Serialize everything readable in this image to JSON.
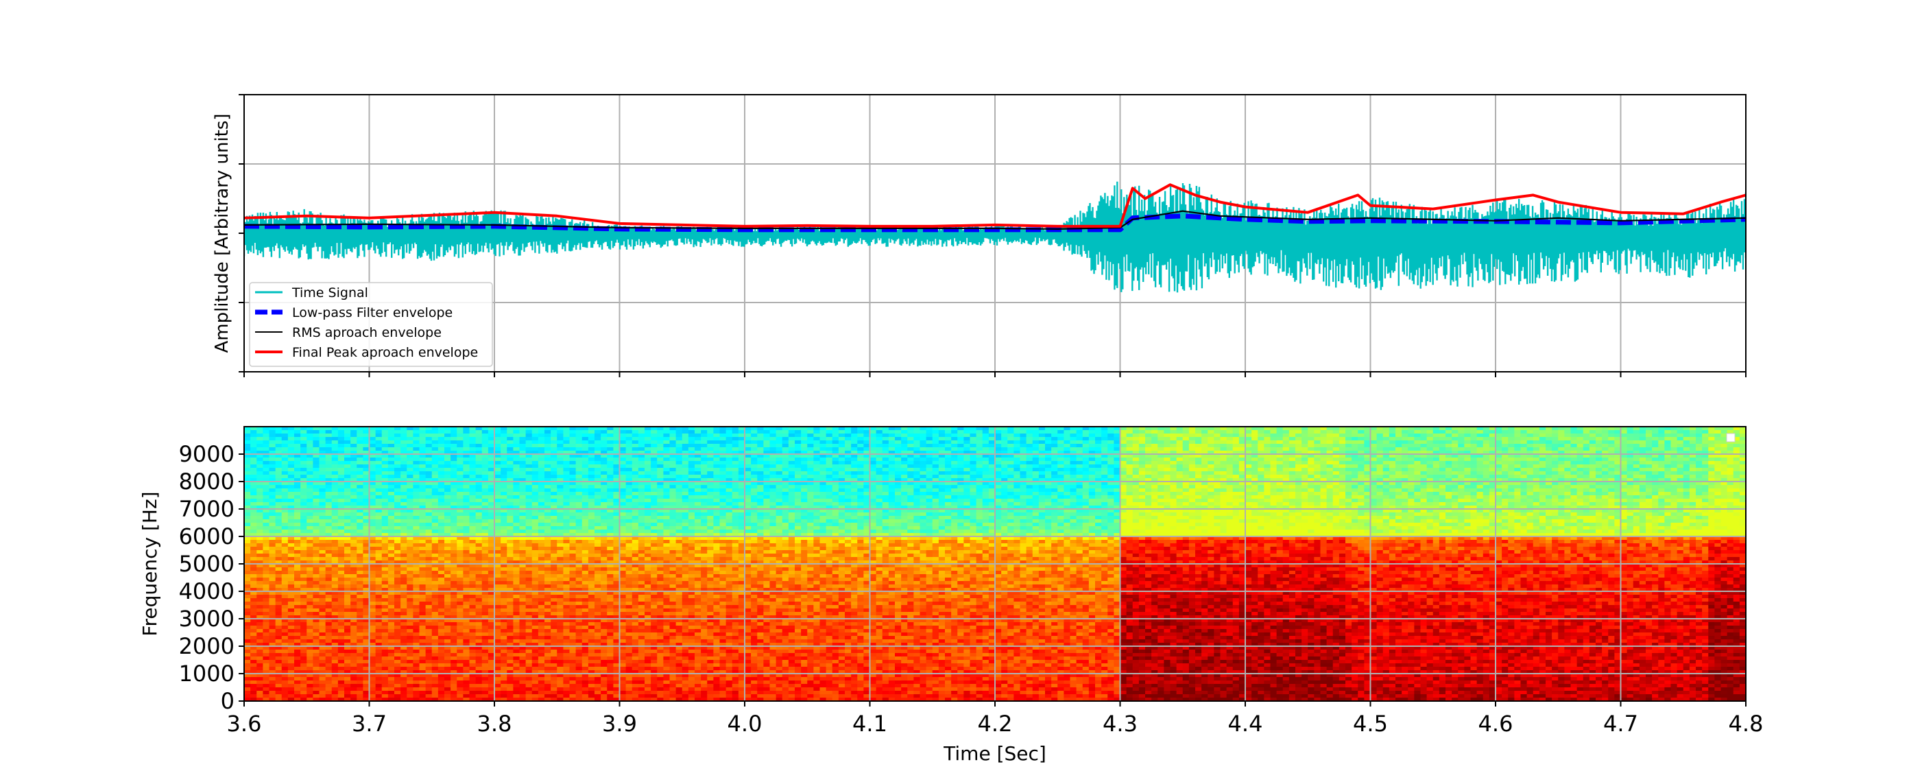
{
  "chart_data": [
    {
      "type": "line",
      "title": "",
      "xlabel": "",
      "ylabel": "Amplitude [Arbitrary units]",
      "xlim": [
        3.6,
        4.8
      ],
      "ylim": [
        -2,
        2
      ],
      "yticks": [
        -2,
        -1,
        0,
        1,
        2
      ],
      "xticks": [
        3.6,
        3.7,
        3.8,
        3.9,
        4.0,
        4.1,
        4.2,
        4.3,
        4.4,
        4.5,
        4.6,
        4.7,
        4.8
      ],
      "grid": true,
      "legend_position": "lower-left",
      "series": [
        {
          "name": "Time Signal",
          "color": "#00bfbf",
          "style": "solid",
          "x": [
            3.6,
            3.65,
            3.7,
            3.75,
            3.8,
            3.85,
            3.9,
            3.95,
            4.0,
            4.05,
            4.1,
            4.15,
            4.2,
            4.25,
            4.3,
            4.32,
            4.35,
            4.4,
            4.45,
            4.5,
            4.55,
            4.6,
            4.65,
            4.7,
            4.75,
            4.8
          ],
          "upper": [
            0.3,
            0.35,
            0.22,
            0.3,
            0.35,
            0.25,
            0.12,
            0.1,
            0.08,
            0.1,
            0.1,
            0.12,
            0.12,
            0.1,
            0.8,
            0.65,
            0.75,
            0.5,
            0.35,
            0.55,
            0.35,
            0.5,
            0.5,
            0.3,
            0.3,
            0.6
          ],
          "lower": [
            -0.35,
            -0.4,
            -0.35,
            -0.4,
            -0.35,
            -0.3,
            -0.25,
            -0.2,
            -0.2,
            -0.2,
            -0.2,
            -0.2,
            -0.18,
            -0.18,
            -0.9,
            -0.8,
            -0.9,
            -0.6,
            -0.75,
            -0.85,
            -0.8,
            -0.8,
            -0.75,
            -0.6,
            -0.65,
            -0.6
          ]
        },
        {
          "name": "Low-pass Filter envelope",
          "color": "#0000ff",
          "style": "dashed",
          "x": [
            3.6,
            3.7,
            3.8,
            3.9,
            4.0,
            4.1,
            4.2,
            4.25,
            4.3,
            4.31,
            4.35,
            4.4,
            4.45,
            4.5,
            4.6,
            4.7,
            4.8
          ],
          "y": [
            0.1,
            0.09,
            0.1,
            0.06,
            0.05,
            0.05,
            0.05,
            0.05,
            0.05,
            0.22,
            0.25,
            0.2,
            0.17,
            0.18,
            0.17,
            0.15,
            0.2
          ]
        },
        {
          "name": "RMS aproach envelope",
          "color": "#000000",
          "style": "solid",
          "x": [
            3.6,
            3.7,
            3.8,
            3.9,
            4.0,
            4.1,
            4.2,
            4.25,
            4.3,
            4.31,
            4.35,
            4.38,
            4.45,
            4.5,
            4.6,
            4.65,
            4.7,
            4.8
          ],
          "y": [
            0.12,
            0.13,
            0.12,
            0.08,
            0.07,
            0.07,
            0.07,
            0.06,
            0.08,
            0.2,
            0.32,
            0.25,
            0.2,
            0.22,
            0.18,
            0.22,
            0.18,
            0.22
          ]
        },
        {
          "name": "Final Peak aproach  envelope",
          "color": "#ff0000",
          "style": "solid",
          "x": [
            3.6,
            3.65,
            3.7,
            3.75,
            3.8,
            3.85,
            3.9,
            3.95,
            4.0,
            4.05,
            4.1,
            4.15,
            4.2,
            4.25,
            4.3,
            4.31,
            4.32,
            4.34,
            4.36,
            4.38,
            4.4,
            4.45,
            4.49,
            4.5,
            4.55,
            4.6,
            4.63,
            4.65,
            4.7,
            4.75,
            4.78,
            4.8
          ],
          "y": [
            0.22,
            0.25,
            0.22,
            0.26,
            0.3,
            0.25,
            0.14,
            0.12,
            0.1,
            0.11,
            0.1,
            0.1,
            0.12,
            0.1,
            0.1,
            0.65,
            0.5,
            0.7,
            0.55,
            0.45,
            0.38,
            0.3,
            0.55,
            0.4,
            0.35,
            0.48,
            0.55,
            0.45,
            0.3,
            0.28,
            0.45,
            0.55
          ]
        }
      ]
    },
    {
      "type": "heatmap",
      "title": "",
      "xlabel": "Time [Sec]",
      "ylabel": "Frequency [Hz]",
      "xlim": [
        3.6,
        4.8
      ],
      "ylim": [
        0,
        10000
      ],
      "xticks": [
        3.6,
        3.7,
        3.8,
        3.9,
        4.0,
        4.1,
        4.2,
        4.3,
        4.4,
        4.5,
        4.6,
        4.7,
        4.8
      ],
      "yticks": [
        0,
        1000,
        2000,
        3000,
        4000,
        5000,
        6000,
        7000,
        8000,
        9000
      ],
      "grid": true,
      "colormap": "jet",
      "legend_position": "upper-right",
      "time_segments": [
        {
          "start": 3.6,
          "end": 4.3,
          "intensity": 0.55
        },
        {
          "start": 4.3,
          "end": 4.48,
          "intensity": 0.8
        },
        {
          "start": 4.48,
          "end": 4.77,
          "intensity": 0.72
        },
        {
          "start": 4.77,
          "end": 4.8,
          "intensity": 0.82
        }
      ],
      "frequency_profile": [
        {
          "freq": 0,
          "level": 0.85
        },
        {
          "freq": 1000,
          "level": 0.82
        },
        {
          "freq": 3000,
          "level": 0.8
        },
        {
          "freq": 5000,
          "level": 0.74
        },
        {
          "freq": 5900,
          "level": 0.7
        },
        {
          "freq": 6100,
          "level": 0.48
        },
        {
          "freq": 8000,
          "level": 0.4
        },
        {
          "freq": 10000,
          "level": 0.38
        }
      ]
    }
  ]
}
